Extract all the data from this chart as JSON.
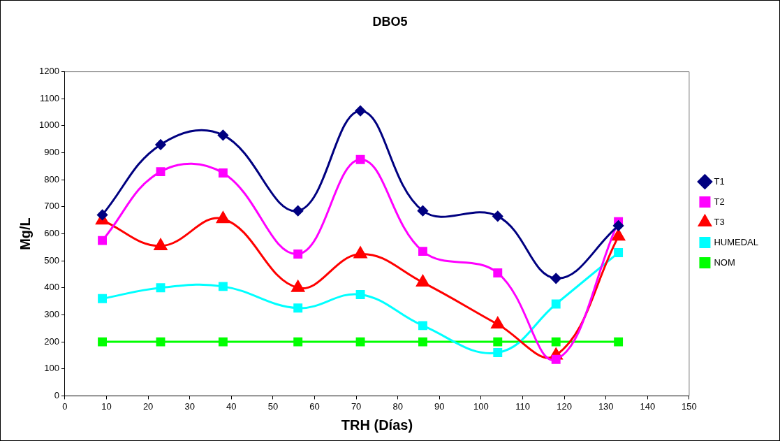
{
  "chart_data": {
    "type": "line",
    "title": "DBO5",
    "xlabel": "TRH (Días)",
    "ylabel": "Mg/L",
    "xlim": [
      0,
      150
    ],
    "xticks": [
      0,
      10,
      20,
      30,
      40,
      50,
      60,
      70,
      80,
      90,
      100,
      110,
      120,
      130,
      140,
      150
    ],
    "ylim": [
      0,
      1200
    ],
    "yticks": [
      0,
      100,
      200,
      300,
      400,
      500,
      600,
      700,
      800,
      900,
      1000,
      1100,
      1200
    ],
    "x": [
      9,
      23,
      38,
      56,
      71,
      86,
      104,
      118,
      133
    ],
    "grid": false,
    "legend": "right",
    "series": [
      {
        "name": "T1",
        "color": "#000080",
        "marker": "diamond",
        "values": [
          670,
          930,
          965,
          685,
          1055,
          685,
          665,
          435,
          630
        ]
      },
      {
        "name": "T2",
        "color": "#ff00ff",
        "marker": "square",
        "values": [
          575,
          830,
          825,
          525,
          875,
          535,
          455,
          135,
          645
        ]
      },
      {
        "name": "T3",
        "color": "#ff0000",
        "marker": "triangle",
        "values": [
          650,
          555,
          655,
          400,
          525,
          420,
          265,
          150,
          590
        ]
      },
      {
        "name": "HUMEDAL",
        "color": "#00ffff",
        "marker": "square",
        "values": [
          360,
          400,
          405,
          325,
          375,
          260,
          160,
          340,
          530
        ]
      },
      {
        "name": "NOM",
        "color": "#00ff00",
        "marker": "square",
        "values": [
          200,
          200,
          200,
          200,
          200,
          200,
          200,
          200,
          200
        ]
      }
    ]
  }
}
